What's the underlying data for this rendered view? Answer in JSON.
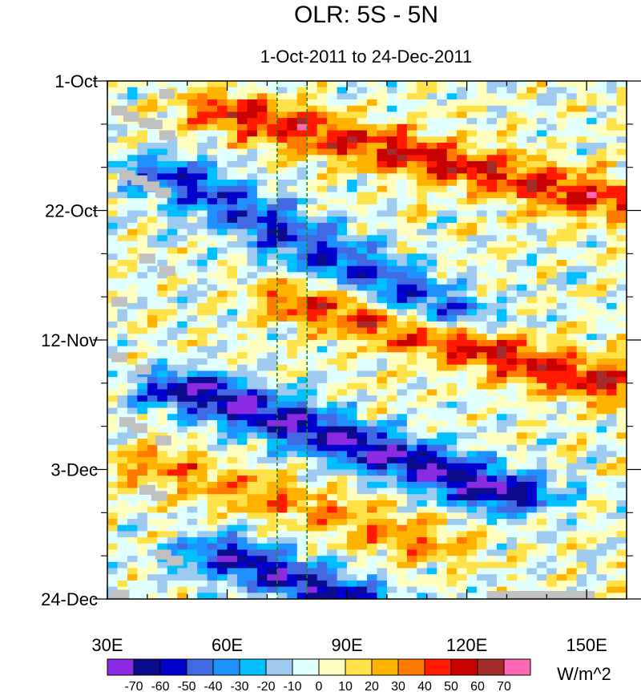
{
  "chart_data": {
    "type": "heatmap",
    "title": "OLR: 5S - 5N",
    "subtitle": "1-Oct-2011 to 24-Dec-2011",
    "xlabel": "",
    "ylabel": "",
    "x_range": [
      30,
      160
    ],
    "y_range_days": [
      0,
      84
    ],
    "x_ticks": [
      {
        "value": 30,
        "label": "30E"
      },
      {
        "value": 60,
        "label": "60E"
      },
      {
        "value": 90,
        "label": "90E"
      },
      {
        "value": 120,
        "label": "120E"
      },
      {
        "value": 150,
        "label": "150E"
      }
    ],
    "y_ticks": [
      {
        "value": 0,
        "label": "1-Oct"
      },
      {
        "value": 21,
        "label": "22-Oct"
      },
      {
        "value": 42,
        "label": "12-Nov"
      },
      {
        "value": 63,
        "label": "3-Dec"
      },
      {
        "value": 84,
        "label": "24-Dec"
      }
    ],
    "reference_lines_lon": [
      72.5,
      80
    ],
    "colorbar": {
      "units": "W/m^2",
      "levels": [
        -70,
        -60,
        -50,
        -40,
        -30,
        -20,
        -10,
        0,
        10,
        20,
        30,
        40,
        50,
        60,
        70
      ],
      "colors": [
        "#8a2be2",
        "#0b0b8c",
        "#0000cd",
        "#4169e1",
        "#1e90ff",
        "#00bfff",
        "#9ecaf0",
        "#e0ffff",
        "#ffffc0",
        "#ffe14a",
        "#ffb300",
        "#ff7a00",
        "#ff1a00",
        "#c80000",
        "#a52a2a",
        "#ff69b4"
      ]
    },
    "features": [
      {
        "name": "convective-envelope-1",
        "lon0": 45,
        "day0": 15,
        "lon1": 115,
        "day1": 38,
        "value": -50
      },
      {
        "name": "convective-envelope-2",
        "lon0": 50,
        "day0": 50,
        "lon1": 130,
        "day1": 67,
        "value": -70
      },
      {
        "name": "convective-envelope-3",
        "lon0": 60,
        "day0": 77,
        "lon1": 90,
        "day1": 84,
        "value": -60
      },
      {
        "name": "suppressed-envelope-1",
        "lon0": 60,
        "day0": 5,
        "lon1": 160,
        "day1": 20,
        "value": 50
      },
      {
        "name": "suppressed-envelope-2",
        "lon0": 80,
        "day0": 36,
        "lon1": 160,
        "day1": 50,
        "value": 50
      },
      {
        "name": "suppressed-envelope-3",
        "lon0": 40,
        "day0": 62,
        "lon1": 110,
        "day1": 75,
        "value": 30
      }
    ]
  }
}
